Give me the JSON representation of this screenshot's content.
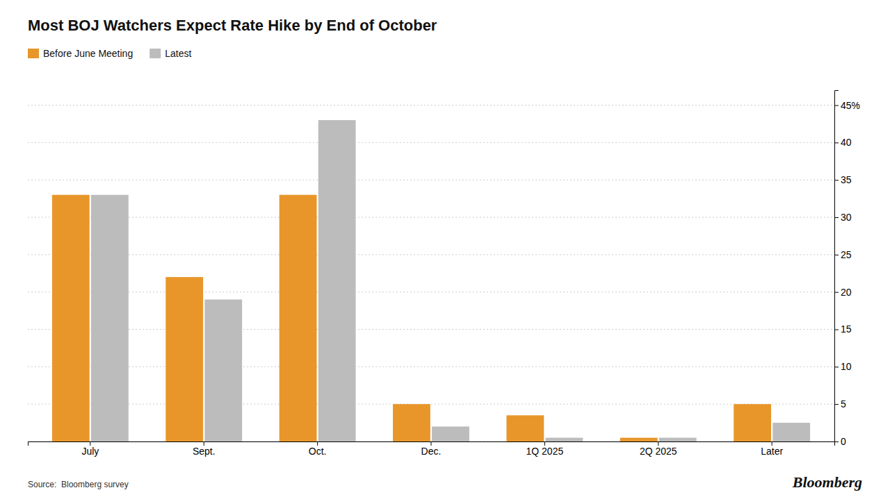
{
  "chart_data": {
    "type": "bar",
    "title": "Most BOJ Watchers Expect Rate Hike by End of October",
    "categories": [
      "July",
      "Sept.",
      "Oct.",
      "Dec.",
      "1Q 2025",
      "2Q 2025",
      "Later"
    ],
    "series": [
      {
        "name": "Before June Meeting",
        "color": "#E8962A",
        "values": [
          33,
          22,
          33,
          5,
          3.5,
          0.5,
          5
        ]
      },
      {
        "name": "Latest",
        "color": "#BCBCBC",
        "values": [
          33,
          19,
          43,
          2,
          0.5,
          0.5,
          2.5
        ]
      }
    ],
    "ylim": [
      0,
      47
    ],
    "yticks": [
      0,
      5,
      10,
      15,
      20,
      25,
      30,
      35,
      40,
      {
        "value": 45,
        "label": "45%"
      }
    ],
    "grid": true,
    "legend": "top-left",
    "annotations": [
      "Source:  Bloomberg survey",
      "Bloomberg"
    ]
  }
}
